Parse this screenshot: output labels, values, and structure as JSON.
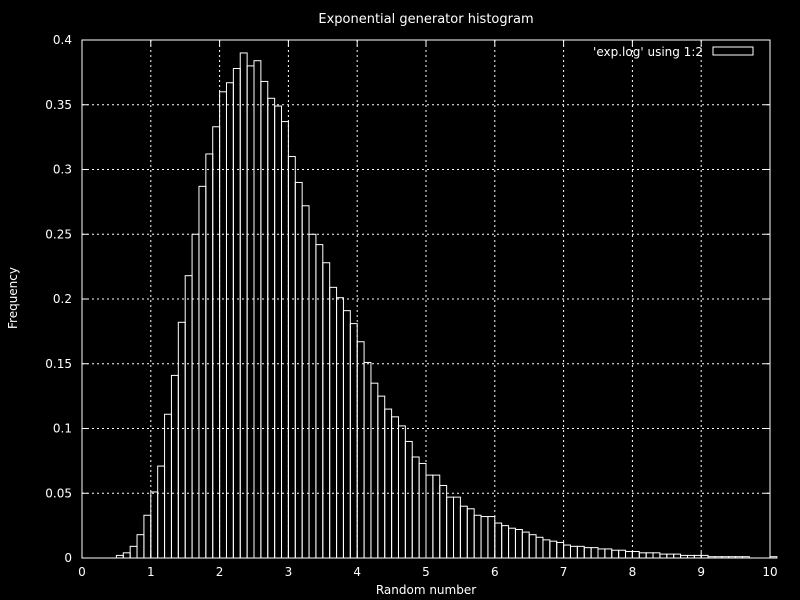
{
  "chart_data": {
    "type": "bar",
    "style": "histogram-steps",
    "title": "Exponential generator histogram",
    "xlabel": "Random number",
    "ylabel": "Frequency",
    "xlim": [
      0,
      10
    ],
    "ylim": [
      0,
      0.4
    ],
    "x_ticks": [
      "0",
      "1",
      "2",
      "3",
      "4",
      "5",
      "6",
      "7",
      "8",
      "9",
      "10"
    ],
    "y_ticks": [
      "0",
      "0.05",
      "0.1",
      "0.15",
      "0.2",
      "0.25",
      "0.3",
      "0.35",
      "0.4"
    ],
    "grid": true,
    "legend_position": "top-right",
    "legend_entry": "'exp.log' using 1:2",
    "colors": {
      "background": "#000000",
      "foreground": "#ffffff",
      "grid": "#ffffff"
    },
    "bin_width": 0.1,
    "bin_start": 0.5,
    "values": [
      0.002,
      0.004,
      0.009,
      0.018,
      0.033,
      0.051,
      0.071,
      0.111,
      0.141,
      0.182,
      0.218,
      0.25,
      0.287,
      0.312,
      0.333,
      0.36,
      0.367,
      0.378,
      0.39,
      0.38,
      0.384,
      0.368,
      0.355,
      0.349,
      0.337,
      0.31,
      0.29,
      0.272,
      0.25,
      0.242,
      0.228,
      0.209,
      0.201,
      0.191,
      0.181,
      0.167,
      0.151,
      0.135,
      0.125,
      0.115,
      0.109,
      0.102,
      0.09,
      0.078,
      0.073,
      0.064,
      0.064,
      0.056,
      0.047,
      0.047,
      0.04,
      0.038,
      0.033,
      0.032,
      0.032,
      0.027,
      0.025,
      0.023,
      0.022,
      0.02,
      0.018,
      0.016,
      0.014,
      0.013,
      0.012,
      0.01,
      0.009,
      0.009,
      0.008,
      0.008,
      0.007,
      0.007,
      0.006,
      0.006,
      0.005,
      0.005,
      0.004,
      0.004,
      0.004,
      0.003,
      0.003,
      0.003,
      0.002,
      0.002,
      0.002,
      0.002,
      0.001,
      0.001,
      0.001,
      0.001,
      0.001,
      0.001,
      0.0,
      0.0,
      0.0,
      0.001
    ]
  }
}
